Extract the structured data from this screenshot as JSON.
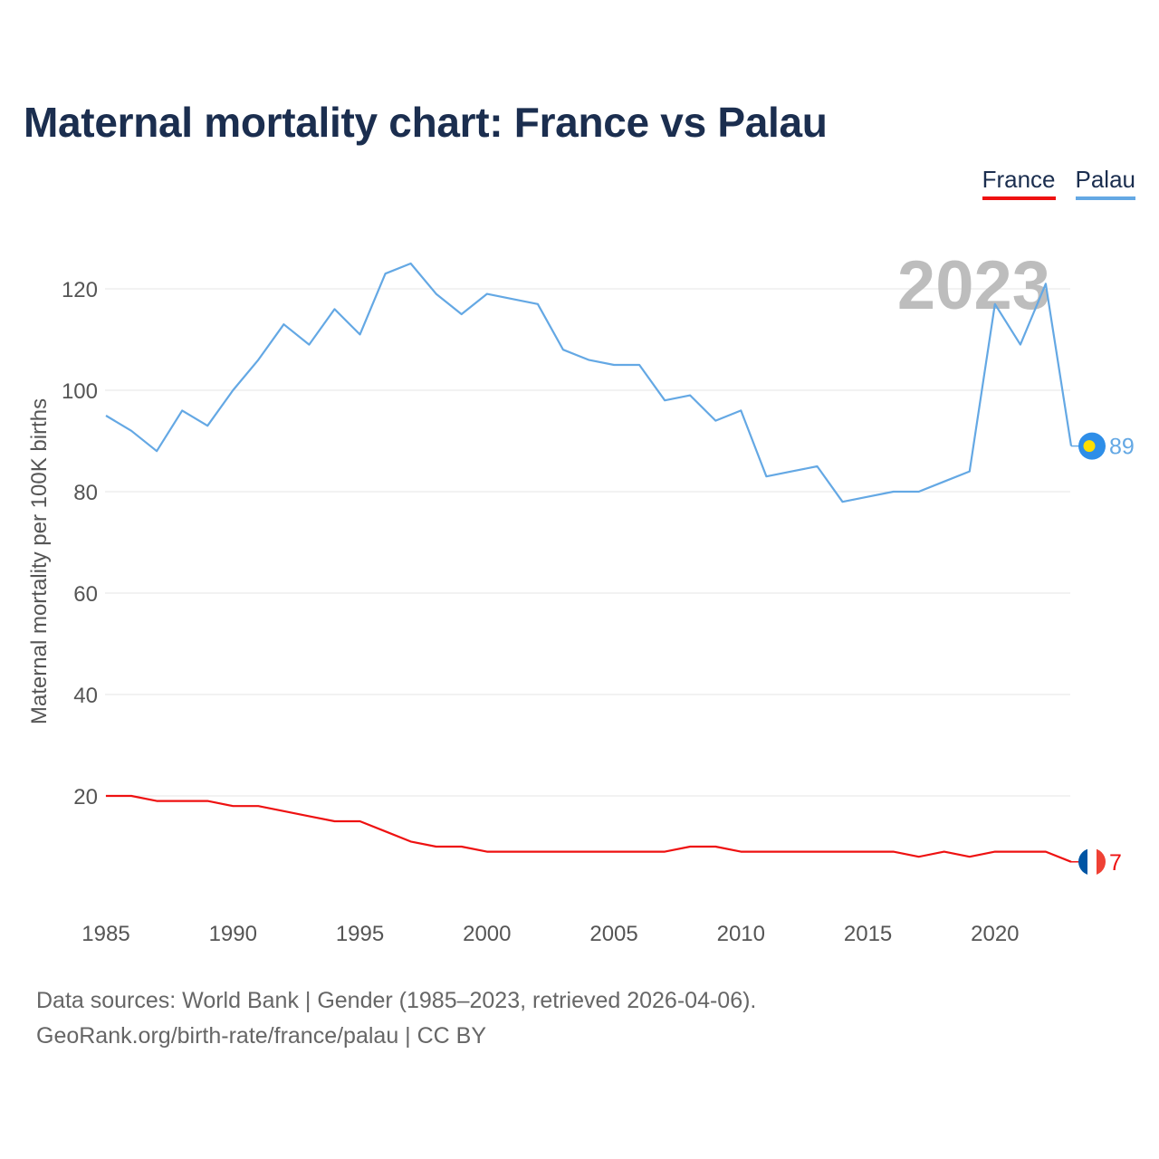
{
  "title": "Maternal mortality chart: France vs Palau",
  "legend": [
    {
      "label": "France",
      "color": "#ee1111"
    },
    {
      "label": "Palau",
      "color": "#64a8e4"
    }
  ],
  "footer": {
    "line1": "Data sources: World Bank | Gender (1985–2023, retrieved 2026-04-06).",
    "line2": "GeoRank.org/birth-rate/france/palau | CC BY"
  },
  "chart_data": {
    "type": "line",
    "title": "Maternal mortality chart: France vs Palau",
    "xlabel": "",
    "ylabel": "Maternal mortality per 100K births",
    "year_watermark": "2023",
    "xlim": [
      1985,
      2023
    ],
    "ylim": [
      0,
      130
    ],
    "x_ticks": [
      "1985",
      "1990",
      "1995",
      "2000",
      "2005",
      "2010",
      "2015",
      "2020"
    ],
    "y_ticks": [
      "20",
      "40",
      "60",
      "80",
      "100",
      "120"
    ],
    "grid": true,
    "legend_position": "top-right",
    "x": [
      1985,
      1986,
      1987,
      1988,
      1989,
      1990,
      1991,
      1992,
      1993,
      1994,
      1995,
      1996,
      1997,
      1998,
      1999,
      2000,
      2001,
      2002,
      2003,
      2004,
      2005,
      2006,
      2007,
      2008,
      2009,
      2010,
      2011,
      2012,
      2013,
      2014,
      2015,
      2016,
      2017,
      2018,
      2019,
      2020,
      2021,
      2022,
      2023
    ],
    "series": [
      {
        "name": "France",
        "color": "#ee1111",
        "end_label": "7",
        "values": [
          20,
          20,
          19,
          19,
          19,
          18,
          18,
          17,
          16,
          15,
          15,
          13,
          11,
          10,
          10,
          9,
          9,
          9,
          9,
          9,
          9,
          9,
          9,
          10,
          10,
          9,
          9,
          9,
          9,
          9,
          9,
          9,
          8,
          9,
          8,
          9,
          9,
          9,
          7
        ]
      },
      {
        "name": "Palau",
        "color": "#64a8e4",
        "end_label": "89",
        "values": [
          95,
          92,
          88,
          96,
          93,
          100,
          106,
          113,
          109,
          116,
          111,
          123,
          125,
          119,
          115,
          119,
          118,
          117,
          108,
          106,
          105,
          105,
          98,
          99,
          94,
          96,
          83,
          84,
          85,
          78,
          79,
          80,
          80,
          82,
          84,
          117,
          109,
          121,
          89
        ]
      }
    ]
  }
}
